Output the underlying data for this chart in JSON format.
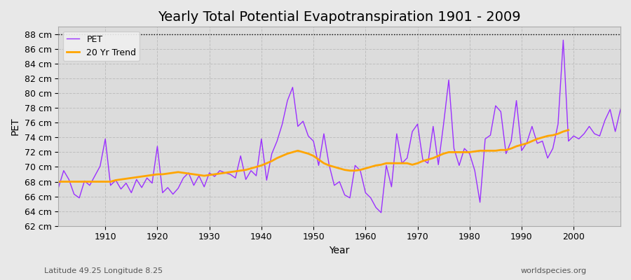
{
  "title": "Yearly Total Potential Evapotranspiration 1901 - 2009",
  "xlabel": "Year",
  "ylabel": "PET",
  "subtitle": "Latitude 49.25 Longitude 8.25",
  "watermark": "worldspecies.org",
  "pet_color": "#9B30FF",
  "trend_color": "#FFA500",
  "bg_color": "#E8E8E8",
  "plot_bg_color": "#DCDCDC",
  "ylim": [
    62,
    89
  ],
  "ytick_step": 2,
  "years": [
    1901,
    1902,
    1903,
    1904,
    1905,
    1906,
    1907,
    1908,
    1909,
    1910,
    1911,
    1912,
    1913,
    1914,
    1915,
    1916,
    1917,
    1918,
    1919,
    1920,
    1921,
    1922,
    1923,
    1924,
    1925,
    1926,
    1927,
    1928,
    1929,
    1930,
    1931,
    1932,
    1933,
    1934,
    1935,
    1936,
    1937,
    1938,
    1939,
    1940,
    1941,
    1942,
    1943,
    1944,
    1945,
    1946,
    1947,
    1948,
    1949,
    1950,
    1951,
    1952,
    1953,
    1954,
    1955,
    1956,
    1957,
    1958,
    1959,
    1960,
    1961,
    1962,
    1963,
    1964,
    1965,
    1966,
    1967,
    1968,
    1969,
    1970,
    1971,
    1972,
    1973,
    1974,
    1975,
    1976,
    1977,
    1978,
    1979,
    1980,
    1981,
    1982,
    1983,
    1984,
    1985,
    1986,
    1987,
    1988,
    1989,
    1990,
    1991,
    1992,
    1993,
    1994,
    1995,
    1996,
    1997,
    1998,
    1999,
    2000,
    2001,
    2002,
    2003,
    2004,
    2005,
    2006,
    2007,
    2008,
    2009
  ],
  "pet_values": [
    67.2,
    69.5,
    68.3,
    66.3,
    65.8,
    68.1,
    67.5,
    68.8,
    70.1,
    73.8,
    67.5,
    68.2,
    67.0,
    67.8,
    66.5,
    68.3,
    67.2,
    68.5,
    67.8,
    72.8,
    66.5,
    67.2,
    66.3,
    67.1,
    68.5,
    69.2,
    67.5,
    68.8,
    67.3,
    69.2,
    68.7,
    69.5,
    69.2,
    69.0,
    68.5,
    71.5,
    68.3,
    69.5,
    68.8,
    73.8,
    68.2,
    71.8,
    73.5,
    75.8,
    79.0,
    80.8,
    75.5,
    76.2,
    74.2,
    73.5,
    70.2,
    74.5,
    70.3,
    67.5,
    68.0,
    66.2,
    65.8,
    70.2,
    69.5,
    66.5,
    65.8,
    64.5,
    63.8,
    70.2,
    67.3,
    74.5,
    70.5,
    71.2,
    74.8,
    75.8,
    71.0,
    70.5,
    75.5,
    70.3,
    75.8,
    81.8,
    72.5,
    70.2,
    72.5,
    71.8,
    69.5,
    65.2,
    73.8,
    74.3,
    78.3,
    77.5,
    71.8,
    73.5,
    79.0,
    72.2,
    73.3,
    75.5,
    73.2,
    73.5,
    71.2,
    72.5,
    75.8,
    87.2,
    73.5,
    74.2,
    73.8,
    74.5,
    75.5,
    74.5,
    74.2,
    76.3,
    77.8,
    74.8,
    77.8
  ],
  "trend_values": [
    68.0,
    68.0,
    68.0,
    68.0,
    68.0,
    68.0,
    68.0,
    68.0,
    68.0,
    68.0,
    68.0,
    68.2,
    68.3,
    68.4,
    68.5,
    68.6,
    68.7,
    68.8,
    68.9,
    69.0,
    69.0,
    69.1,
    69.2,
    69.3,
    69.2,
    69.1,
    69.0,
    68.9,
    68.8,
    68.9,
    69.0,
    69.1,
    69.2,
    69.3,
    69.4,
    69.5,
    69.6,
    69.8,
    70.0,
    70.2,
    70.5,
    70.8,
    71.2,
    71.5,
    71.8,
    72.0,
    72.2,
    72.0,
    71.8,
    71.5,
    71.0,
    70.5,
    70.2,
    70.0,
    69.8,
    69.6,
    69.5,
    69.5,
    69.6,
    69.8,
    70.0,
    70.2,
    70.3,
    70.5,
    70.5,
    70.5,
    70.5,
    70.5,
    70.3,
    70.5,
    70.8,
    71.0,
    71.2,
    71.5,
    71.8,
    72.0,
    72.0,
    72.0,
    72.0,
    72.0,
    72.1,
    72.2,
    72.2,
    72.2,
    72.2,
    72.3,
    72.3,
    72.5,
    72.8,
    73.0,
    73.2,
    73.5,
    73.8,
    74.0,
    74.2,
    74.3,
    74.5,
    74.8,
    75.0,
    null,
    null,
    null,
    null,
    null,
    null,
    null,
    null,
    null,
    null,
    null
  ],
  "legend_labels": [
    "PET",
    "20 Yr Trend"
  ],
  "title_fontsize": 14,
  "axis_label_fontsize": 10,
  "tick_fontsize": 9
}
